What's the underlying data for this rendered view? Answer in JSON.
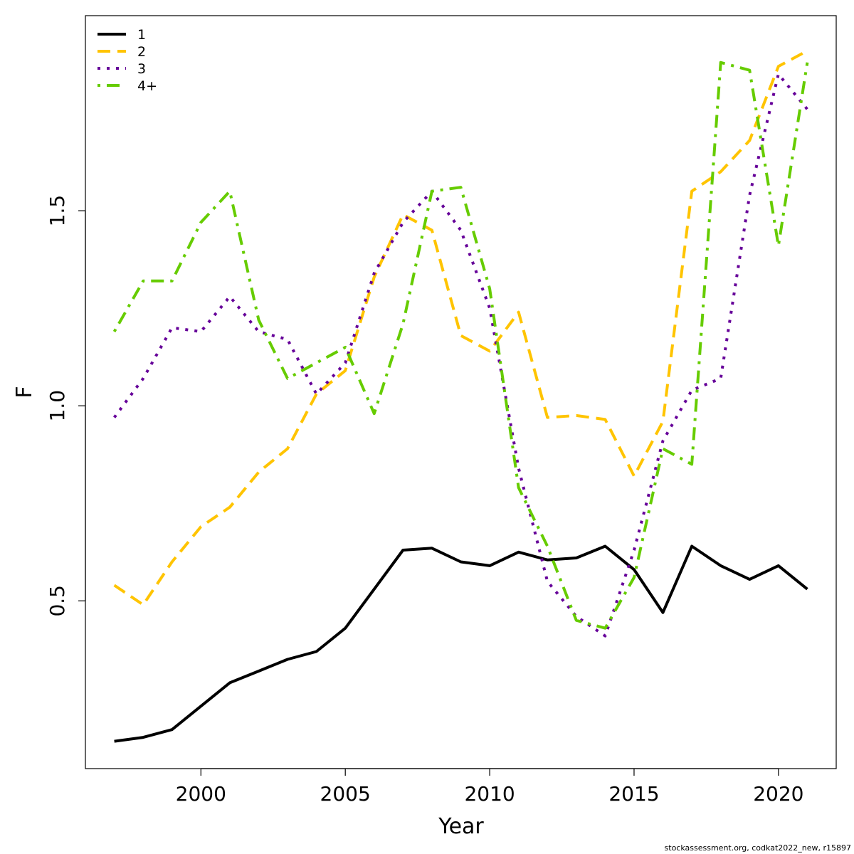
{
  "chart_data": {
    "type": "line",
    "xlabel": "Year",
    "ylabel": "F",
    "xlim": [
      1996,
      2022
    ],
    "ylim": [
      0.07,
      2.0
    ],
    "xticks": [
      2000,
      2005,
      2010,
      2015,
      2020
    ],
    "yticks": [
      0.5,
      1.0,
      1.5
    ],
    "ytick_labels": [
      "0.5",
      "1.0",
      "1.5"
    ],
    "legend_position": "top-left",
    "grid": false,
    "x": [
      1997,
      1998,
      1999,
      2000,
      2001,
      2002,
      2003,
      2004,
      2005,
      2006,
      2007,
      2008,
      2009,
      2010,
      2011,
      2012,
      2013,
      2014,
      2015,
      2016,
      2017,
      2018,
      2019,
      2020,
      2021
    ],
    "series": [
      {
        "name": "1",
        "color": "#000000",
        "dash": "solid",
        "values": [
          0.14,
          0.15,
          0.17,
          0.23,
          0.29,
          0.32,
          0.35,
          0.37,
          0.43,
          0.53,
          0.63,
          0.635,
          0.6,
          0.59,
          0.625,
          0.605,
          0.61,
          0.64,
          0.58,
          0.47,
          0.64,
          0.59,
          0.555,
          0.59,
          0.53
        ]
      },
      {
        "name": "2",
        "color": "#FFC400",
        "dash": "dashed",
        "values": [
          0.54,
          0.49,
          0.6,
          0.69,
          0.74,
          0.83,
          0.89,
          1.03,
          1.09,
          1.33,
          1.49,
          1.45,
          1.18,
          1.14,
          1.24,
          0.97,
          0.975,
          0.965,
          0.82,
          0.96,
          1.55,
          1.6,
          1.68,
          1.87,
          1.91
        ]
      },
      {
        "name": "3",
        "color": "#660099",
        "dash": "dotted",
        "values": [
          0.97,
          1.07,
          1.2,
          1.19,
          1.28,
          1.19,
          1.17,
          1.03,
          1.11,
          1.34,
          1.47,
          1.55,
          1.45,
          1.25,
          0.84,
          0.55,
          0.46,
          0.41,
          0.63,
          0.91,
          1.04,
          1.07,
          1.54,
          1.85,
          1.76
        ]
      },
      {
        "name": "4+",
        "color": "#66CC00",
        "dash": "dashdot",
        "values": [
          1.19,
          1.32,
          1.32,
          1.47,
          1.55,
          1.22,
          1.07,
          1.11,
          1.15,
          0.98,
          1.21,
          1.55,
          1.56,
          1.3,
          0.79,
          0.64,
          0.45,
          0.43,
          0.56,
          0.89,
          0.85,
          1.88,
          1.86,
          1.41,
          1.88
        ]
      }
    ]
  },
  "footer": "stockassessment.org, codkat2022_new, r15897"
}
